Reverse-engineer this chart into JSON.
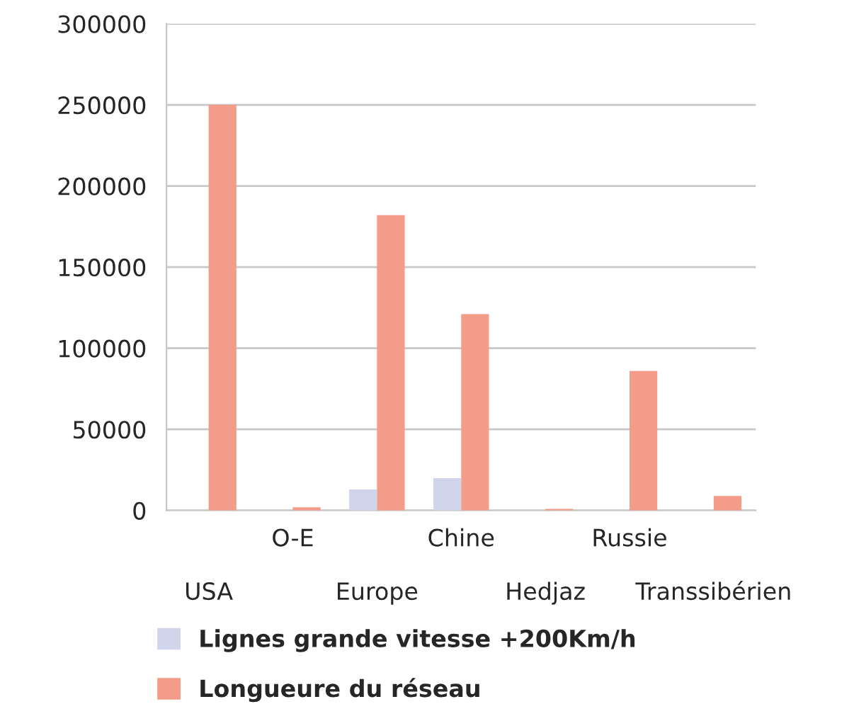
{
  "chart_data": {
    "type": "bar",
    "categories": [
      "USA",
      "O-E",
      "Europe",
      "Chine",
      "Hedjaz",
      "Russie",
      "Transsibérien"
    ],
    "series": [
      {
        "name": "Lignes grande vitesse +200Km/h",
        "color": "#d0d5ec",
        "values": [
          null,
          null,
          13000,
          20000,
          null,
          null,
          null
        ]
      },
      {
        "name": "Longueure du réseau",
        "color": "#f49c8a",
        "values": [
          250000,
          2000,
          182000,
          121000,
          1000,
          86000,
          9000
        ]
      }
    ],
    "ylim": [
      0,
      300000
    ],
    "yticks": [
      0,
      50000,
      100000,
      150000,
      200000,
      250000,
      300000
    ],
    "grid": "y",
    "legend": "bottom"
  }
}
